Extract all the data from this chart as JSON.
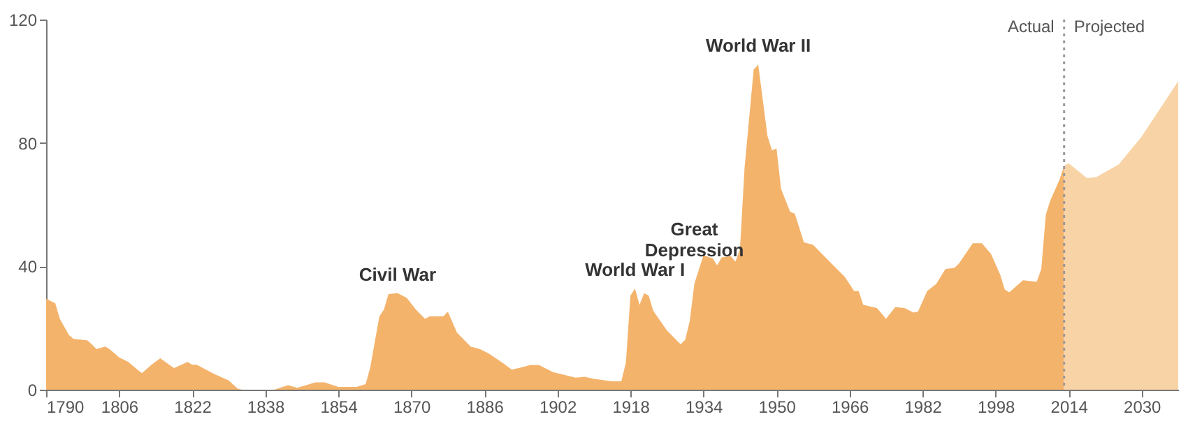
{
  "chart_data": {
    "type": "area",
    "xlim": [
      1790,
      2038
    ],
    "ylim": [
      0,
      120
    ],
    "xticks": [
      1790,
      1806,
      1822,
      1838,
      1854,
      1870,
      1886,
      1902,
      1918,
      1934,
      1950,
      1966,
      1982,
      1998,
      2014,
      2030
    ],
    "yticks": [
      0,
      40,
      80,
      120
    ],
    "grid": false,
    "series": [
      {
        "color": "#f4b36b",
        "x": [
          1790,
          1792,
          1793,
          1795,
          1796,
          1799,
          1800,
          1801,
          1803,
          1804,
          1806,
          1808,
          1810,
          1811,
          1813,
          1815,
          1818,
          1821,
          1822,
          1823,
          1825,
          1827,
          1830,
          1832,
          1833,
          1840,
          1843,
          1845,
          1849,
          1851,
          1854,
          1858,
          1860,
          1861,
          1863,
          1864,
          1865,
          1867,
          1869,
          1871,
          1873,
          1874,
          1877,
          1878,
          1880,
          1883,
          1885,
          1887,
          1890,
          1892,
          1894,
          1896,
          1898,
          1901,
          1906,
          1908,
          1910,
          1914,
          1916,
          1917,
          1918,
          1919,
          1920,
          1921,
          1922,
          1923,
          1926,
          1928,
          1929,
          1930,
          1931,
          1932,
          1934,
          1936,
          1937,
          1938,
          1940,
          1941,
          1942,
          1943,
          1945,
          1946,
          1948,
          1949,
          1950,
          1951,
          1953,
          1954,
          1956,
          1958,
          1960,
          1962,
          1965,
          1967,
          1968,
          1969,
          1972,
          1974,
          1976,
          1978,
          1980,
          1981,
          1983,
          1985,
          1987,
          1989,
          1990,
          1993,
          1995,
          1997,
          1999,
          2000,
          2001,
          2004,
          2007,
          2008,
          2009,
          2010,
          2012,
          2013
        ],
        "values": [
          29.5,
          28,
          23,
          17.7,
          16.5,
          16,
          14.7,
          13.2,
          14,
          13,
          10.5,
          9,
          6.5,
          5.4,
          8,
          10.2,
          7,
          9,
          8.1,
          8.1,
          6.5,
          5,
          3,
          0.3,
          0,
          0,
          1.5,
          0.6,
          2.4,
          2.4,
          0.9,
          0.9,
          1.8,
          7.2,
          23.8,
          26,
          31,
          31.3,
          29.8,
          26,
          23,
          23.8,
          23.8,
          25.3,
          18.5,
          14,
          13.2,
          11.7,
          8.7,
          6.5,
          7.2,
          8,
          8,
          5.7,
          3.9,
          4.2,
          3.5,
          2.7,
          2.7,
          8.7,
          30.5,
          32.8,
          27.5,
          31.3,
          30.5,
          25.6,
          19.2,
          16.2,
          14.7,
          16.2,
          22.3,
          34.3,
          43.6,
          42.6,
          40.3,
          42.9,
          43.3,
          41.5,
          45.6,
          71.9,
          103.8,
          105.4,
          82.4,
          77.6,
          78.2,
          65.1,
          57.6,
          57.1,
          47.8,
          47,
          44,
          41,
          36.5,
          32,
          32,
          27.5,
          26.5,
          23,
          26.8,
          26.5,
          25,
          25.3,
          32,
          34.3,
          39.1,
          39.5,
          41,
          47.5,
          47.5,
          44,
          37.3,
          32.5,
          31.6,
          35.5,
          35,
          39.1,
          56.8,
          61.4,
          68.1,
          72.6
        ]
      },
      {
        "color": "#f8d3a6",
        "x": [
          2013,
          2014,
          2018,
          2020,
          2025,
          2030,
          2038
        ],
        "values": [
          72.6,
          73.4,
          68.6,
          68.9,
          73.1,
          82.1,
          100
        ]
      }
    ],
    "ref_lines": [
      {
        "axis": "x",
        "value": 2013,
        "color": "#999999",
        "line_style": "dotted"
      }
    ],
    "annotations": [
      "Actual",
      "Projected",
      {
        "text": "Civil War",
        "x": 1867,
        "y": 31.3
      },
      {
        "text": "World War I",
        "x": 1919,
        "y": 32.8
      },
      {
        "text": "Great\nDepression",
        "x": 1932,
        "y": 34.3
      },
      {
        "text": "World War II",
        "x": 1946,
        "y": 105.4
      }
    ]
  }
}
